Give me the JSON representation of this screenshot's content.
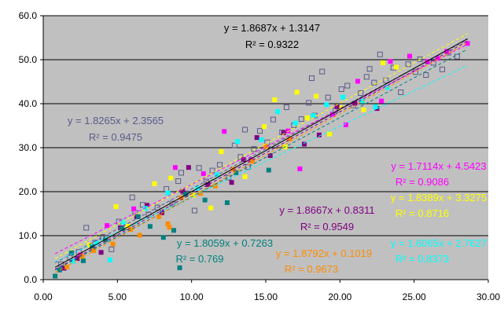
{
  "chart_data": {
    "type": "scatter",
    "title": "",
    "xlabel": "",
    "ylabel": "",
    "xlim": [
      0,
      30
    ],
    "ylim": [
      0,
      60
    ],
    "x_ticks": [
      "0.00",
      "5.00",
      "10.00",
      "15.00",
      "20.00",
      "25.00",
      "30.00"
    ],
    "y_ticks": [
      "0.0",
      "10.0",
      "20.0",
      "30.0",
      "40.0",
      "50.0",
      "60.0"
    ],
    "grid": "horizontal",
    "plot_background": "#c0c0c0",
    "series": [
      {
        "color": "#5a5a8c",
        "marker": "hollow-square",
        "trendline": {
          "slope": 1.8265,
          "intercept": 2.3565,
          "equation": "y = 1.8265x + 2.3565",
          "r2": "R² = 0.9475"
        },
        "points": [
          [
            1.2,
            3.5
          ],
          [
            1.8,
            5.0
          ],
          [
            2.4,
            6.3
          ],
          [
            2.9,
            11.8
          ],
          [
            3.5,
            8.4
          ],
          [
            4.0,
            9.7
          ],
          [
            4.6,
            6.9
          ],
          [
            5.1,
            13.2
          ],
          [
            5.6,
            11.9
          ],
          [
            6.2,
            15.2
          ],
          [
            6.7,
            17.0
          ],
          [
            7.1,
            14.8
          ],
          [
            7.7,
            16.4
          ],
          [
            8.3,
            20.6
          ],
          [
            8.7,
            17.3
          ],
          [
            9.1,
            22.4
          ],
          [
            9.6,
            19.6
          ],
          [
            10.2,
            15.7
          ],
          [
            10.5,
            25.4
          ],
          [
            11.0,
            22.3
          ],
          [
            11.4,
            24.8
          ],
          [
            11.9,
            26.1
          ],
          [
            12.5,
            23.2
          ],
          [
            12.9,
            30.5
          ],
          [
            13.3,
            27.9
          ],
          [
            13.8,
            25.6
          ],
          [
            14.2,
            29.7
          ],
          [
            14.6,
            33.8
          ],
          [
            15.1,
            31.2
          ],
          [
            15.5,
            36.4
          ],
          [
            16.1,
            33.5
          ],
          [
            16.4,
            39.2
          ],
          [
            16.9,
            35.1
          ],
          [
            17.4,
            36.5
          ],
          [
            17.9,
            40.2
          ],
          [
            18.3,
            37.3
          ],
          [
            18.8,
            47.3
          ],
          [
            19.2,
            41.4
          ],
          [
            19.7,
            38.5
          ],
          [
            20.1,
            43.3
          ],
          [
            20.5,
            44.1
          ],
          [
            20.9,
            39.6
          ],
          [
            21.4,
            42.4
          ],
          [
            21.8,
            46.1
          ],
          [
            22.3,
            44.8
          ],
          [
            22.7,
            51.2
          ],
          [
            23.1,
            45.3
          ],
          [
            23.6,
            48.2
          ],
          [
            24.1,
            42.6
          ],
          [
            24.6,
            49.0
          ],
          [
            25.1,
            47.2
          ],
          [
            25.4,
            50.1
          ],
          [
            25.8,
            46.5
          ],
          [
            26.3,
            49.3
          ],
          [
            26.9,
            47.8
          ],
          [
            27.3,
            51.6
          ],
          [
            27.9,
            50.7
          ],
          [
            18.1,
            45.8
          ],
          [
            13.6,
            34.1
          ],
          [
            9.3,
            24.3
          ],
          [
            6.0,
            18.7
          ],
          [
            22.0,
            47.9
          ]
        ]
      },
      {
        "color": "#ff00ff",
        "marker": "square",
        "trendline": {
          "slope": 1.7114,
          "intercept": 4.5423,
          "equation": "y = 1.7114x + 4.5423",
          "r2": "R² = 0.9086"
        },
        "points": [
          [
            2.5,
            5.6
          ],
          [
            4.3,
            12.3
          ],
          [
            6.1,
            16.1
          ],
          [
            8.9,
            25.5
          ],
          [
            10.8,
            24.1
          ],
          [
            12.2,
            33.7
          ],
          [
            14.0,
            27.3
          ],
          [
            16.5,
            33.8
          ],
          [
            17.3,
            25.2
          ],
          [
            19.5,
            37.6
          ],
          [
            20.4,
            35.2
          ],
          [
            21.2,
            45.1
          ],
          [
            22.8,
            40.6
          ],
          [
            23.4,
            49.6
          ],
          [
            24.7,
            50.8
          ],
          [
            25.9,
            49.6
          ],
          [
            26.6,
            50.3
          ],
          [
            27.2,
            51.9
          ],
          [
            28.6,
            53.7
          ]
        ]
      },
      {
        "color": "#ffff00",
        "marker": "square",
        "trendline": {
          "slope": 1.8389,
          "intercept": 3.3275,
          "equation": "y = 1.8389x + 3.3275",
          "r2": "R² = 0.8716"
        },
        "points": [
          [
            3.1,
            7.9
          ],
          [
            4.9,
            16.6
          ],
          [
            5.7,
            12.1
          ],
          [
            7.5,
            21.8
          ],
          [
            8.6,
            23.1
          ],
          [
            10.1,
            19.2
          ],
          [
            11.3,
            16.3
          ],
          [
            12.0,
            29.1
          ],
          [
            13.6,
            23.4
          ],
          [
            14.9,
            34.8
          ],
          [
            15.6,
            40.9
          ],
          [
            16.3,
            30.2
          ],
          [
            17.1,
            42.6
          ],
          [
            17.8,
            36.8
          ],
          [
            18.4,
            41.7
          ],
          [
            19.3,
            33.1
          ],
          [
            20.0,
            39.1
          ],
          [
            21.6,
            38.6
          ],
          [
            22.9,
            49.3
          ],
          [
            23.8,
            48.3
          ]
        ]
      },
      {
        "color": "#800080",
        "marker": "square",
        "trendline": {
          "slope": 1.8667,
          "intercept": 0.8311,
          "equation": "y = 1.8667x + 0.8311",
          "r2": "R² = 0.9549"
        },
        "points": [
          [
            1.4,
            2.6
          ],
          [
            2.3,
            4.8
          ],
          [
            3.9,
            6.2
          ],
          [
            5.2,
            11.8
          ],
          [
            6.3,
            14.3
          ],
          [
            7.0,
            16.9
          ],
          [
            8.0,
            15.2
          ],
          [
            9.4,
            20.1
          ],
          [
            9.8,
            25.5
          ],
          [
            11.1,
            21.6
          ],
          [
            12.7,
            22.1
          ],
          [
            13.5,
            27.3
          ],
          [
            14.4,
            32.3
          ],
          [
            15.3,
            28.2
          ],
          [
            16.2,
            33.4
          ],
          [
            17.6,
            30.8
          ],
          [
            18.6,
            32.9
          ],
          [
            19.8,
            39.3
          ],
          [
            21.0,
            40.1
          ],
          [
            22.5,
            38.9
          ]
        ]
      },
      {
        "color": "#00ffff",
        "marker": "square",
        "trendline": {
          "slope": 1.6065,
          "intercept": 2.7627,
          "equation": "y = 1.6065x + 2.7627",
          "r2": "R² = 0.8373"
        },
        "points": [
          [
            2.0,
            4.2
          ],
          [
            3.6,
            8.3
          ],
          [
            4.5,
            4.5
          ],
          [
            5.4,
            13.1
          ],
          [
            6.9,
            16.2
          ],
          [
            8.4,
            19.7
          ],
          [
            10.4,
            20.8
          ],
          [
            11.7,
            23.9
          ],
          [
            13.1,
            31.4
          ],
          [
            14.7,
            31.8
          ],
          [
            15.8,
            38.2
          ],
          [
            17.0,
            35.6
          ],
          [
            18.2,
            37.3
          ],
          [
            19.1,
            39.8
          ],
          [
            20.2,
            41.5
          ],
          [
            21.5,
            40.6
          ],
          [
            22.4,
            39.3
          ],
          [
            23.2,
            43.7
          ]
        ]
      },
      {
        "color": "#008080",
        "marker": "square",
        "trendline": {
          "slope": 1.8059,
          "intercept": 0.7263,
          "equation": "y = 1.8059x + 0.7263",
          "r2": "R² = 0.769"
        },
        "points": [
          [
            0.8,
            0.8
          ],
          [
            1.1,
            2.2
          ],
          [
            1.9,
            6.1
          ],
          [
            2.7,
            4.3
          ],
          [
            3.3,
            7.5
          ],
          [
            4.2,
            9.1
          ],
          [
            5.3,
            11.6
          ],
          [
            6.4,
            14.3
          ],
          [
            7.2,
            12.1
          ],
          [
            8.1,
            9.6
          ],
          [
            8.8,
            11.2
          ],
          [
            9.2,
            2.7
          ],
          [
            9.6,
            19.4
          ],
          [
            10.9,
            18.1
          ],
          [
            12.4,
            17.5
          ],
          [
            13.0,
            24.3
          ],
          [
            15.2,
            24.9
          ]
        ]
      },
      {
        "color": "#ff8c00",
        "marker": "square",
        "trendline": {
          "slope": 1.8792,
          "intercept": 0.1019,
          "equation": "y = 1.8792x + 0.1019",
          "r2": "R² = 0.9673"
        },
        "points": [
          [
            1.6,
            2.9
          ],
          [
            2.6,
            5.3
          ],
          [
            3.4,
            6.6
          ],
          [
            4.7,
            8.1
          ],
          [
            5.9,
            11.4
          ],
          [
            6.5,
            10.1
          ],
          [
            7.8,
            14.3
          ],
          [
            8.4,
            12.7
          ],
          [
            8.5,
            11.9
          ],
          [
            9.3,
            18.6
          ],
          [
            10.6,
            19.6
          ],
          [
            11.6,
            21.3
          ],
          [
            12.8,
            25.1
          ],
          [
            14.1,
            26.9
          ],
          [
            15.0,
            30.3
          ],
          [
            16.6,
            32.0
          ]
        ]
      }
    ],
    "overall_trendline": {
      "color": "#000000",
      "slope": 1.8687,
      "intercept": 1.3147,
      "equation": "y = 1.8687x + 1.3147",
      "r2": "R² = 0.9322"
    }
  }
}
